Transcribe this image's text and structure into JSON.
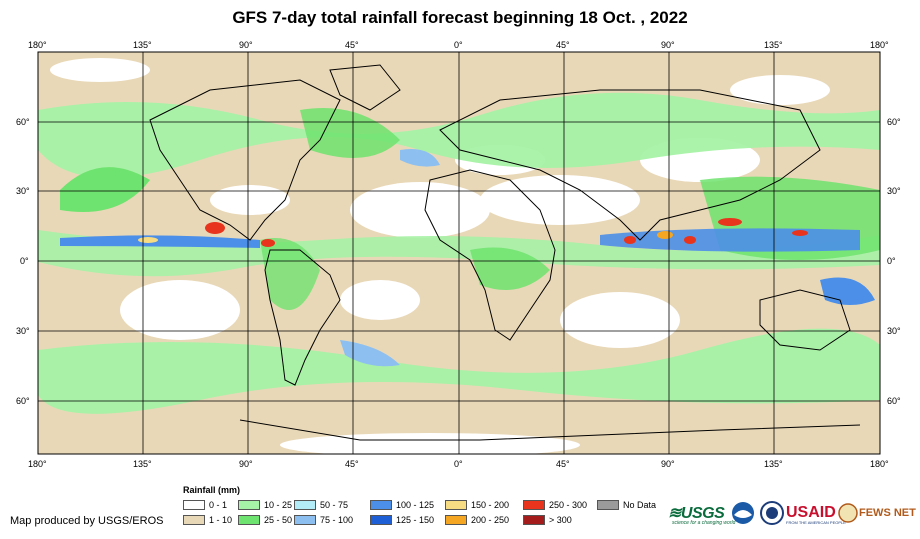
{
  "title": "GFS 7-day total rainfall forecast beginning 18 Oct. , 2022",
  "lon_ticks": [
    "180°",
    "135°",
    "90°",
    "45°",
    "0°",
    "45°",
    "90°",
    "135°",
    "180°"
  ],
  "lat_ticks": [
    "60°",
    "30°",
    "0°",
    "30°",
    "60°"
  ],
  "legend": {
    "title": "Rainfall (mm)",
    "items": [
      {
        "label": "0 - 1",
        "color": "#ffffff"
      },
      {
        "label": "1 - 10",
        "color": "#e9d8b7"
      },
      {
        "label": "10 - 25",
        "color": "#a6f2a6"
      },
      {
        "label": "25 - 50",
        "color": "#6fe36f"
      },
      {
        "label": "50 - 75",
        "color": "#b3ecf7"
      },
      {
        "label": "75 - 100",
        "color": "#8dc0f0"
      },
      {
        "label": "100 - 125",
        "color": "#4b8fe8"
      },
      {
        "label": "125 - 150",
        "color": "#1f5fd6"
      },
      {
        "label": "150 - 200",
        "color": "#f7dc83"
      },
      {
        "label": "200 - 250",
        "color": "#f5a623"
      },
      {
        "label": "250 - 300",
        "color": "#e8341c"
      },
      {
        "label": "> 300",
        "color": "#a51c1c"
      },
      {
        "label": "No Data",
        "color": "#9b9b9b"
      }
    ]
  },
  "credit": "Map produced by USGS/EROS",
  "logos": {
    "usgs": "USGS",
    "usgs_tagline": "science for a changing world",
    "usaid": "USAID",
    "usaid_tagline": "FROM THE AMERICAN PEOPLE",
    "fews": "FEWS NET"
  }
}
